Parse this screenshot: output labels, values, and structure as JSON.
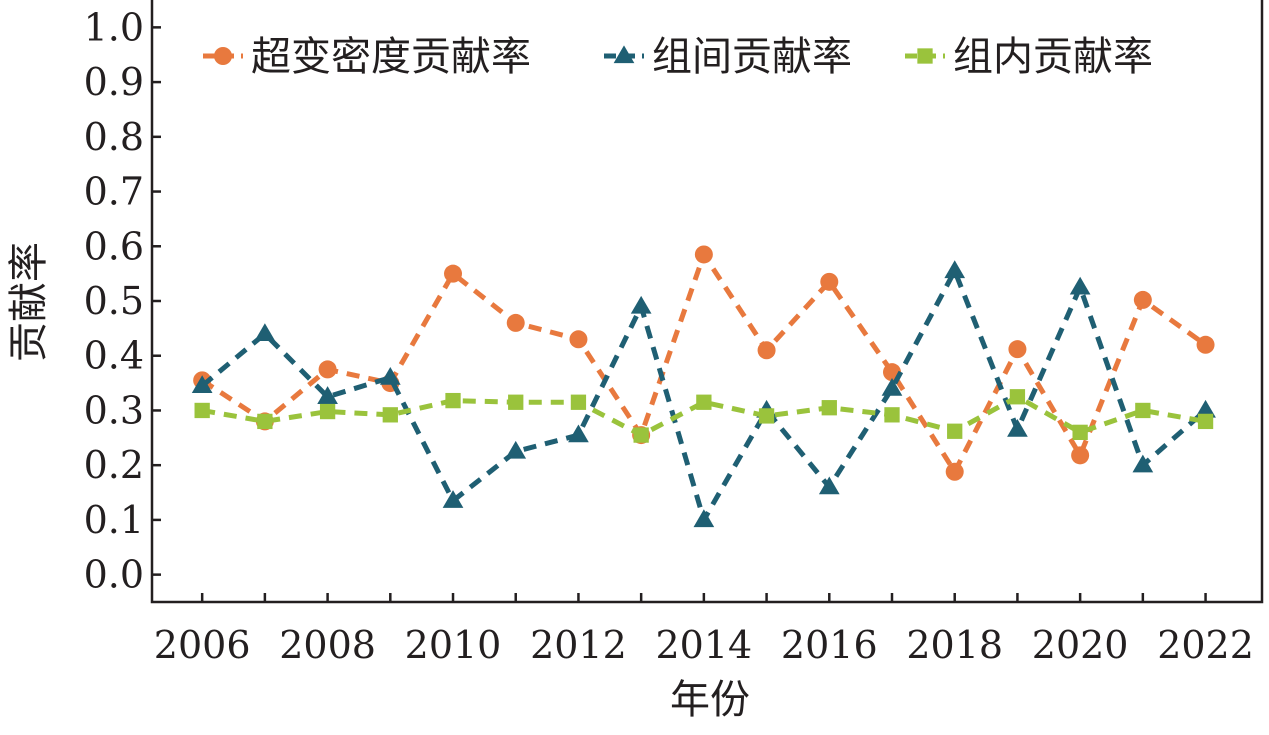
{
  "chart_data": {
    "type": "line",
    "xlabel": "年份",
    "ylabel": "贡献率",
    "x": [
      2006,
      2007,
      2008,
      2009,
      2010,
      2011,
      2012,
      2013,
      2014,
      2015,
      2016,
      2017,
      2018,
      2019,
      2020,
      2021,
      2022
    ],
    "x_tick_labels": [
      "2006",
      "2008",
      "2010",
      "2012",
      "2014",
      "2016",
      "2018",
      "2020",
      "2022"
    ],
    "xlim": [
      2005.2,
      2022.9
    ],
    "ylim": [
      -0.05,
      1.05
    ],
    "y_tick_labels": [
      "0.0",
      "0.1",
      "0.2",
      "0.3",
      "0.4",
      "0.5",
      "0.6",
      "0.7",
      "0.8",
      "0.9",
      "1.0"
    ],
    "grid": false,
    "legend_position": "top",
    "series": [
      {
        "name": "超变密度贡献率",
        "color": "#e8793e",
        "marker": "circle",
        "values": [
          0.355,
          0.28,
          0.375,
          0.35,
          0.55,
          0.46,
          0.43,
          0.255,
          0.585,
          0.41,
          0.535,
          0.37,
          0.188,
          0.412,
          0.218,
          0.502,
          0.42
        ]
      },
      {
        "name": "组间贡献率",
        "color": "#1f5f73",
        "marker": "triangle",
        "values": [
          0.345,
          0.44,
          0.325,
          0.36,
          0.135,
          0.225,
          0.255,
          0.49,
          0.1,
          0.3,
          0.16,
          0.34,
          0.555,
          0.265,
          0.525,
          0.2,
          0.3
        ]
      },
      {
        "name": "组内贡献率",
        "color": "#9ac33c",
        "marker": "square",
        "values": [
          0.3,
          0.28,
          0.298,
          0.292,
          0.318,
          0.315,
          0.315,
          0.255,
          0.315,
          0.29,
          0.305,
          0.292,
          0.262,
          0.325,
          0.26,
          0.3,
          0.28
        ]
      }
    ]
  }
}
